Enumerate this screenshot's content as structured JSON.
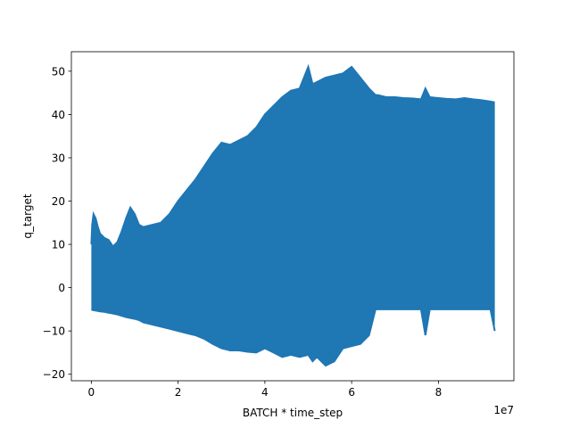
{
  "chart_data": {
    "type": "area",
    "title": "",
    "xlabel": "BATCH * time_step",
    "ylabel": "q_target",
    "x_offset_label": "1e7",
    "xlim": [
      -0.46,
      9.74
    ],
    "ylim": [
      -21.5,
      54.5
    ],
    "x_unit_multiplier": 10000000,
    "x_ticks": [
      0,
      2,
      4,
      6,
      8
    ],
    "x_tick_labels": [
      "0",
      "2",
      "4",
      "6",
      "8"
    ],
    "y_ticks": [
      -20,
      -10,
      0,
      10,
      20,
      30,
      40,
      50
    ],
    "y_tick_labels": [
      "−20",
      "−10",
      "0",
      "10",
      "20",
      "30",
      "40",
      "50"
    ],
    "grid": false,
    "legend": "none",
    "series_color": "#1f77b4",
    "series": [
      {
        "x": [
          0.0,
          0.02,
          0.05,
          0.1,
          0.15,
          0.2,
          0.3,
          0.4,
          0.5,
          0.6,
          0.7,
          0.8,
          0.9,
          1.0,
          1.1,
          1.2,
          1.4,
          1.6,
          1.8,
          2.0,
          2.2,
          2.4,
          2.6,
          2.8,
          3.0,
          3.2,
          3.4,
          3.6,
          3.8,
          4.0,
          4.2,
          4.4,
          4.6,
          4.8,
          5.0,
          5.1,
          5.2,
          5.4,
          5.6,
          5.8,
          6.0,
          6.2,
          6.4,
          6.55,
          6.6,
          6.8,
          7.0,
          7.2,
          7.4,
          7.6,
          7.7,
          7.8,
          8.0,
          8.2,
          8.4,
          8.6,
          8.8,
          9.0,
          9.2,
          9.3
        ],
        "upper": [
          10.0,
          14.5,
          17.0,
          16.0,
          14.0,
          12.5,
          11.5,
          11.0,
          9.5,
          10.5,
          13.0,
          16.0,
          18.5,
          17.0,
          14.5,
          14.0,
          14.5,
          15.0,
          17.0,
          20.0,
          22.5,
          25.0,
          28.0,
          31.0,
          33.5,
          33.0,
          34.0,
          35.0,
          37.0,
          40.0,
          42.0,
          44.0,
          45.5,
          46.0,
          51.0,
          47.0,
          47.5,
          48.5,
          49.0,
          49.5,
          51.0,
          48.5,
          46.0,
          44.5,
          44.5,
          44.0,
          44.0,
          43.8,
          43.7,
          43.5,
          46.0,
          44.0,
          43.8,
          43.6,
          43.5,
          43.8,
          43.5,
          43.3,
          43.0,
          42.8
        ],
        "lower": [
          -5.0,
          -5.1,
          -5.2,
          -5.3,
          -5.4,
          -5.5,
          -5.6,
          -5.8,
          -6.0,
          -6.2,
          -6.5,
          -6.8,
          -7.0,
          -7.2,
          -7.5,
          -8.0,
          -8.5,
          -9.0,
          -9.5,
          -10.0,
          -10.5,
          -11.0,
          -11.8,
          -13.0,
          -14.0,
          -14.5,
          -14.5,
          -14.8,
          -15.0,
          -14.0,
          -15.0,
          -16.0,
          -15.5,
          -16.0,
          -15.5,
          -17.0,
          -16.0,
          -18.0,
          -17.0,
          -14.0,
          -13.5,
          -13.0,
          -11.0,
          -5.0,
          -5.0,
          -5.0,
          -5.0,
          -5.0,
          -5.0,
          -5.0,
          -11.0,
          -5.0,
          -5.0,
          -5.0,
          -5.0,
          -5.0,
          -5.0,
          -5.0,
          -5.0,
          -10.0
        ]
      }
    ]
  }
}
